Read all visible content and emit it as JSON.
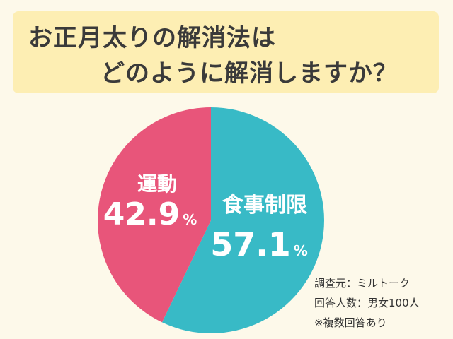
{
  "title": {
    "line1": "お正月太りの解消法は",
    "line2": "どのように解消しますか？"
  },
  "chart_data": {
    "type": "pie",
    "slices": [
      {
        "label": "食事制限",
        "value": 57.1,
        "display": "57.1",
        "unit": "%",
        "color": "#38bac6"
      },
      {
        "label": "運動",
        "value": 42.9,
        "display": "42.9",
        "unit": "%",
        "color": "#e8557a"
      }
    ],
    "start": "top",
    "direction": "clockwise"
  },
  "notes": [
    "調査元：ミルトーク",
    "回答人数：男女100人",
    "※複数回答あり"
  ]
}
